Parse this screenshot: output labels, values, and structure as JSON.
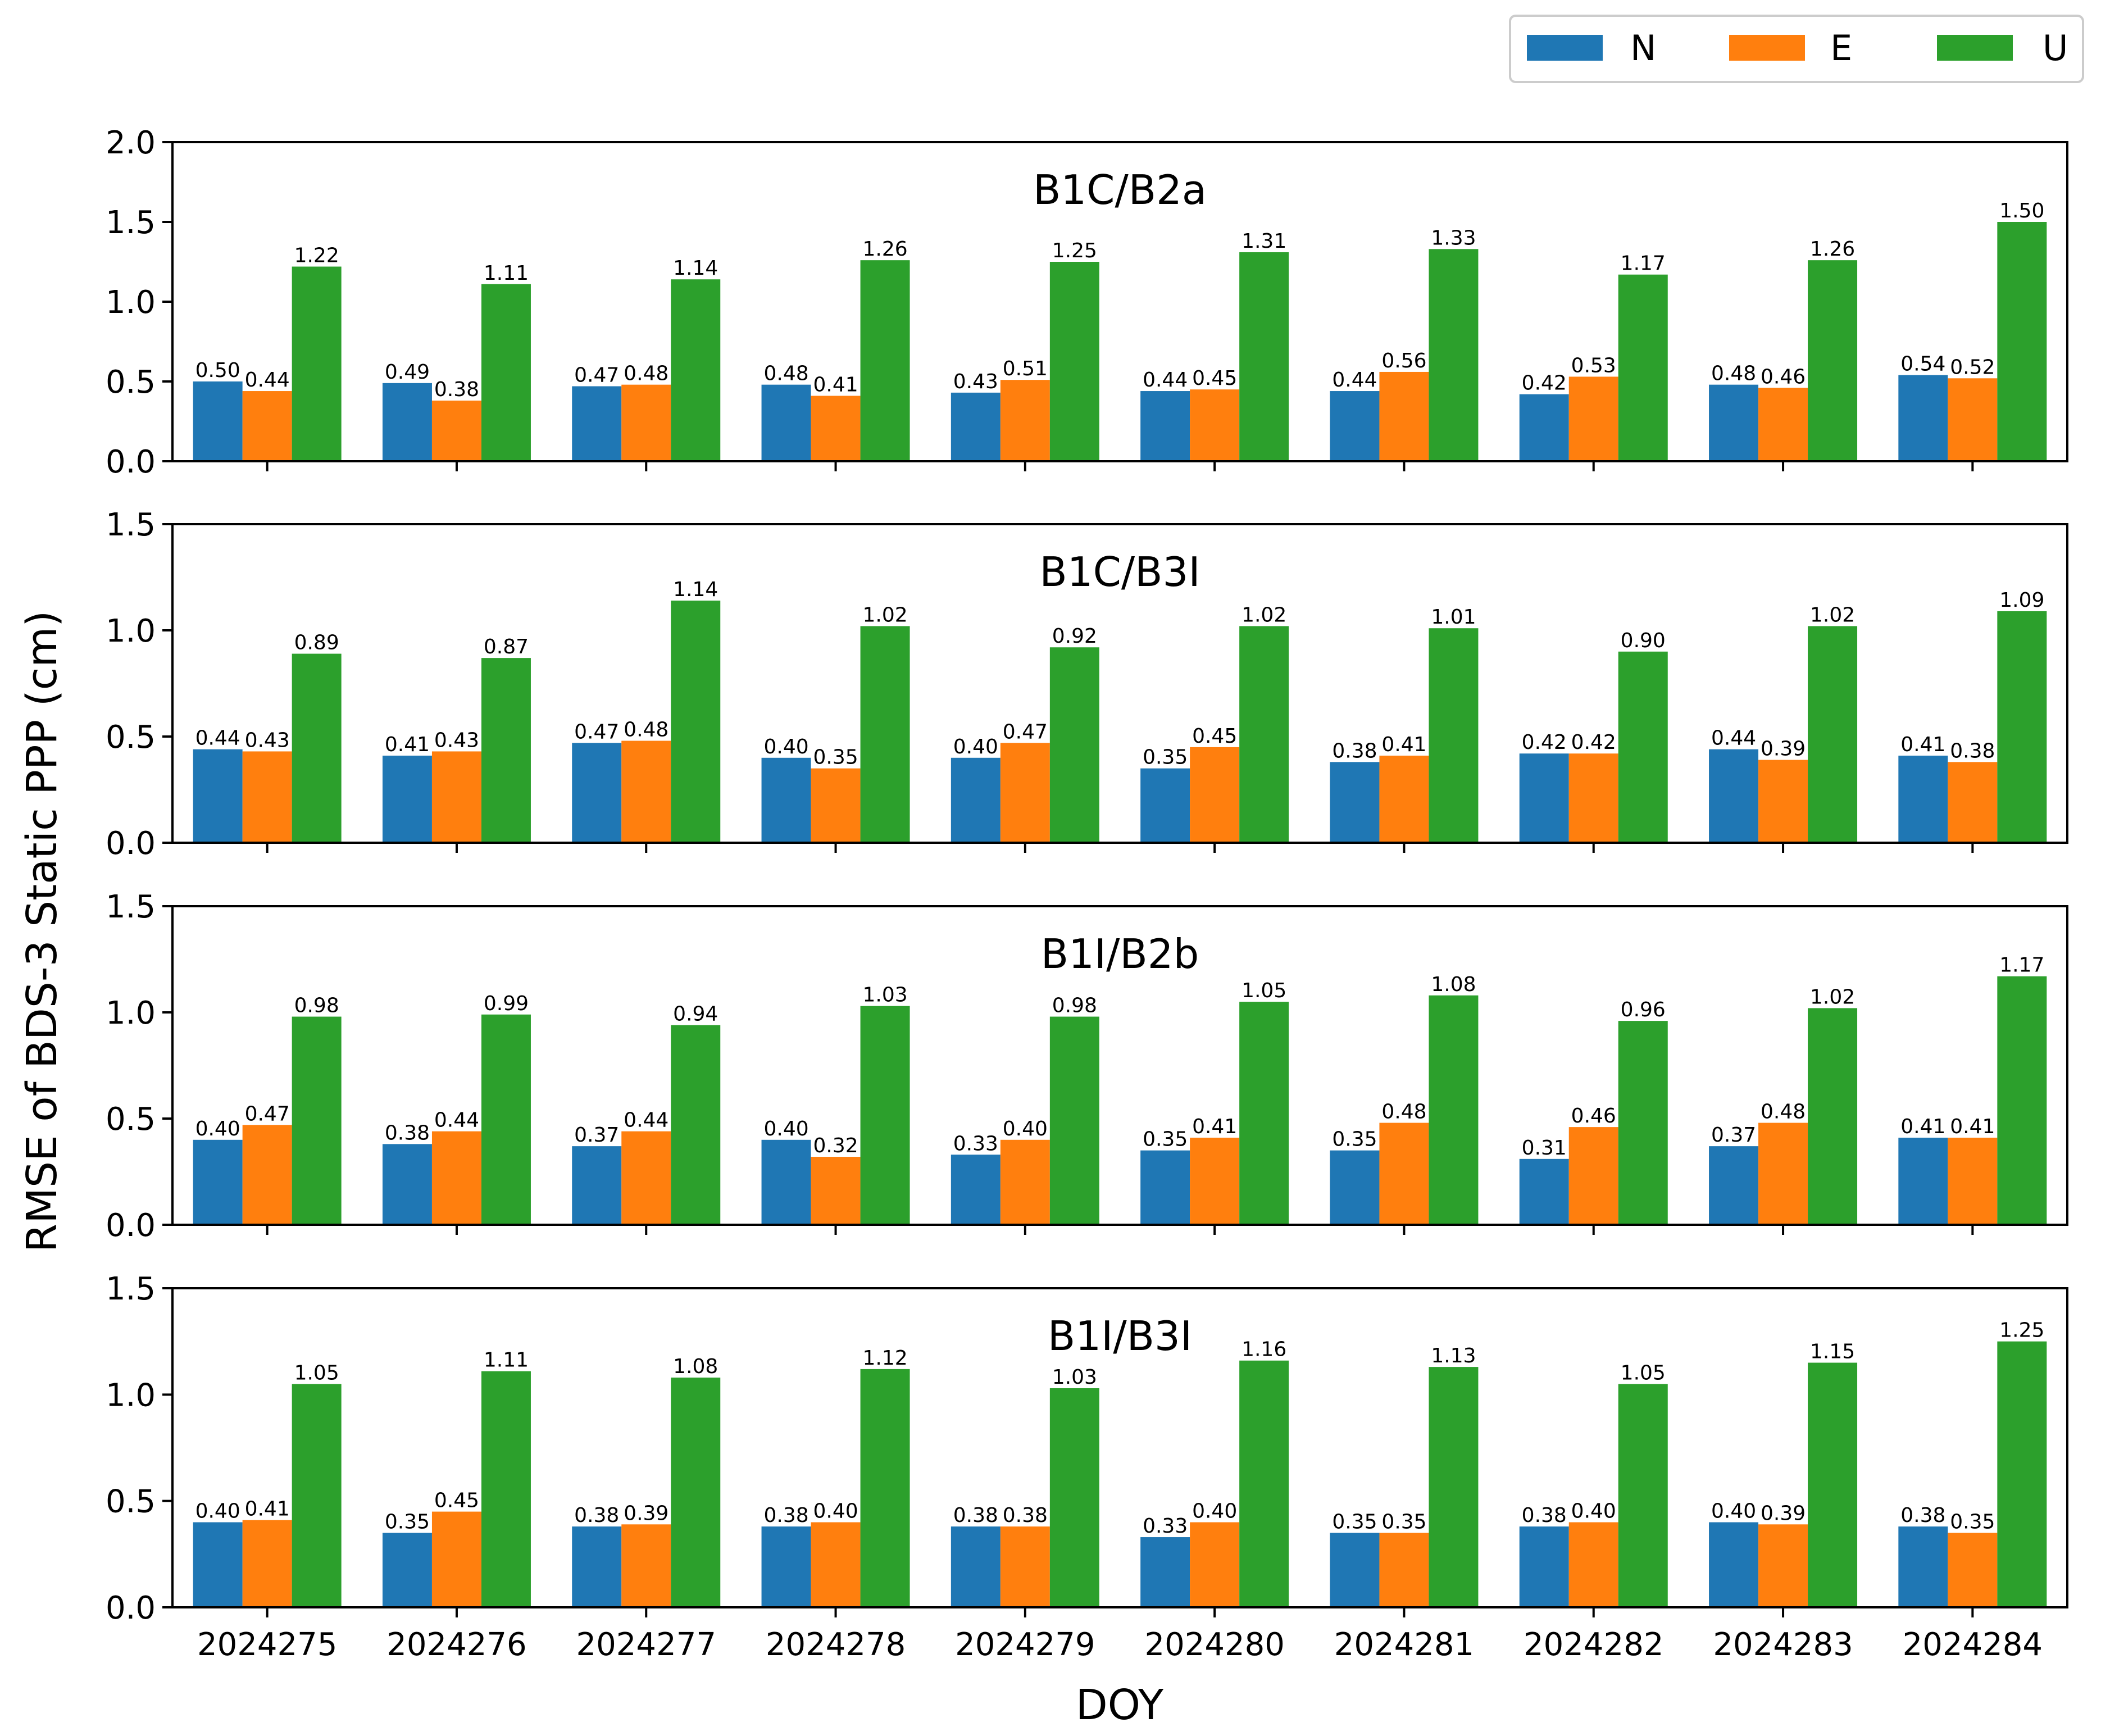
{
  "chart_data": {
    "type": "bar",
    "ylabel": "RMSE of BDS-3 Static PPP (cm)",
    "xlabel": "DOY",
    "categories": [
      "2024275",
      "2024276",
      "2024277",
      "2024278",
      "2024279",
      "2024280",
      "2024281",
      "2024282",
      "2024283",
      "2024284"
    ],
    "legend": {
      "placement": "top-right",
      "entries": [
        {
          "name": "N",
          "color": "#1f77b4"
        },
        {
          "name": "E",
          "color": "#ff7f0e"
        },
        {
          "name": "U",
          "color": "#2ca02c"
        }
      ]
    },
    "panels": [
      {
        "title": "B1C/B2a",
        "ylim": [
          0,
          2.0
        ],
        "yticks": [
          "0.0",
          "0.5",
          "1.0",
          "1.5",
          "2.0"
        ],
        "series": [
          {
            "name": "N",
            "values": [
              0.5,
              0.49,
              0.47,
              0.48,
              0.43,
              0.44,
              0.44,
              0.42,
              0.48,
              0.54
            ],
            "labels": [
              "0.50",
              "0.49",
              "0.47",
              "0.48",
              "0.43",
              "0.44",
              "0.44",
              "0.42",
              "0.48",
              "0.54"
            ]
          },
          {
            "name": "E",
            "values": [
              0.44,
              0.38,
              0.48,
              0.41,
              0.51,
              0.45,
              0.56,
              0.53,
              0.46,
              0.52
            ],
            "labels": [
              "0.44",
              "0.38",
              "0.48",
              "0.41",
              "0.51",
              "0.45",
              "0.56",
              "0.53",
              "0.46",
              "0.52"
            ]
          },
          {
            "name": "U",
            "values": [
              1.22,
              1.11,
              1.14,
              1.26,
              1.25,
              1.31,
              1.33,
              1.17,
              1.26,
              1.5
            ],
            "labels": [
              "1.22",
              "1.11",
              "1.14",
              "1.26",
              "1.25",
              "1.31",
              "1.33",
              "1.17",
              "1.26",
              "1.50"
            ]
          }
        ]
      },
      {
        "title": "B1C/B3I",
        "ylim": [
          0,
          1.5
        ],
        "yticks": [
          "0.0",
          "0.5",
          "1.0",
          "1.5"
        ],
        "series": [
          {
            "name": "N",
            "values": [
              0.44,
              0.41,
              0.47,
              0.4,
              0.4,
              0.35,
              0.38,
              0.42,
              0.44,
              0.41
            ],
            "labels": [
              "0.44",
              "0.41",
              "0.47",
              "0.40",
              "0.40",
              "0.35",
              "0.38",
              "0.42",
              "0.44",
              "0.41"
            ]
          },
          {
            "name": "E",
            "values": [
              0.43,
              0.43,
              0.48,
              0.35,
              0.47,
              0.45,
              0.41,
              0.42,
              0.39,
              0.38
            ],
            "labels": [
              "0.43",
              "0.43",
              "0.48",
              "0.35",
              "0.47",
              "0.45",
              "0.41",
              "0.42",
              "0.39",
              "0.38"
            ]
          },
          {
            "name": "U",
            "values": [
              0.89,
              0.87,
              1.14,
              1.02,
              0.92,
              1.02,
              1.01,
              0.9,
              1.02,
              1.09
            ],
            "labels": [
              "0.89",
              "0.87",
              "1.14",
              "1.02",
              "0.92",
              "1.02",
              "1.01",
              "0.90",
              "1.02",
              "1.09"
            ]
          }
        ]
      },
      {
        "title": "B1I/B2b",
        "ylim": [
          0,
          1.5
        ],
        "yticks": [
          "0.0",
          "0.5",
          "1.0",
          "1.5"
        ],
        "series": [
          {
            "name": "N",
            "values": [
              0.4,
              0.38,
              0.37,
              0.4,
              0.33,
              0.35,
              0.35,
              0.31,
              0.37,
              0.41
            ],
            "labels": [
              "0.40",
              "0.38",
              "0.37",
              "0.40",
              "0.33",
              "0.35",
              "0.35",
              "0.31",
              "0.37",
              "0.41"
            ]
          },
          {
            "name": "E",
            "values": [
              0.47,
              0.44,
              0.44,
              0.32,
              0.4,
              0.41,
              0.48,
              0.46,
              0.48,
              0.41
            ],
            "labels": [
              "0.47",
              "0.44",
              "0.44",
              "0.32",
              "0.40",
              "0.41",
              "0.48",
              "0.46",
              "0.48",
              "0.41"
            ]
          },
          {
            "name": "U",
            "values": [
              0.98,
              0.99,
              0.94,
              1.03,
              0.98,
              1.05,
              1.08,
              0.96,
              1.02,
              1.17
            ],
            "labels": [
              "0.98",
              "0.99",
              "0.94",
              "1.03",
              "0.98",
              "1.05",
              "1.08",
              "0.96",
              "1.02",
              "1.17"
            ]
          }
        ]
      },
      {
        "title": "B1I/B3I",
        "ylim": [
          0,
          1.5
        ],
        "yticks": [
          "0.0",
          "0.5",
          "1.0",
          "1.5"
        ],
        "series": [
          {
            "name": "N",
            "values": [
              0.4,
              0.35,
              0.38,
              0.38,
              0.38,
              0.33,
              0.35,
              0.38,
              0.4,
              0.38
            ],
            "labels": [
              "0.40",
              "0.35",
              "0.38",
              "0.38",
              "0.38",
              "0.33",
              "0.35",
              "0.38",
              "0.40",
              "0.38"
            ]
          },
          {
            "name": "E",
            "values": [
              0.41,
              0.45,
              0.39,
              0.4,
              0.38,
              0.4,
              0.35,
              0.4,
              0.39,
              0.35
            ],
            "labels": [
              "0.41",
              "0.45",
              "0.39",
              "0.40",
              "0.38",
              "0.40",
              "0.35",
              "0.40",
              "0.39",
              "0.35"
            ]
          },
          {
            "name": "U",
            "values": [
              1.05,
              1.11,
              1.08,
              1.12,
              1.03,
              1.16,
              1.13,
              1.05,
              1.15,
              1.25
            ],
            "labels": [
              "1.05",
              "1.11",
              "1.08",
              "1.12",
              "1.03",
              "1.16",
              "1.13",
              "1.05",
              "1.15",
              "1.25"
            ]
          }
        ]
      }
    ]
  }
}
